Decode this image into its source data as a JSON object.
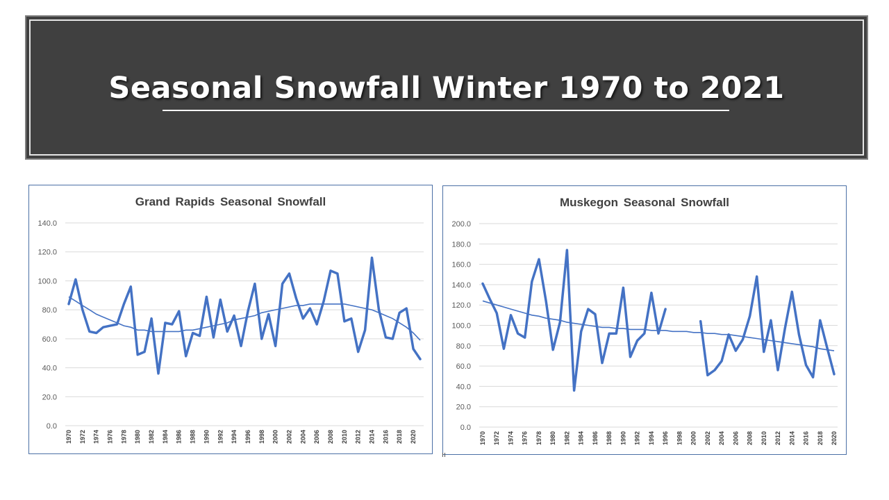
{
  "slide": {
    "title": "Seasonal Snowfall Winter 1970 to 2021"
  },
  "colors": {
    "banner": "#404040",
    "series": "#4472c4",
    "grid": "#d9d9d9",
    "text": "#404040"
  },
  "chart_data": [
    {
      "type": "line",
      "title": "Grand Rapids Seasonal Snowfall",
      "xlabel": "",
      "ylabel": "",
      "ylim": [
        0,
        140
      ],
      "yticks": [
        "0.0",
        "20.0",
        "40.0",
        "60.0",
        "80.0",
        "100.0",
        "120.0",
        "140.0"
      ],
      "x": [
        1970,
        1971,
        1972,
        1973,
        1974,
        1975,
        1976,
        1977,
        1978,
        1979,
        1980,
        1981,
        1982,
        1983,
        1984,
        1985,
        1986,
        1987,
        1988,
        1989,
        1990,
        1991,
        1992,
        1993,
        1994,
        1995,
        1996,
        1997,
        1998,
        1999,
        2000,
        2001,
        2002,
        2003,
        2004,
        2005,
        2006,
        2007,
        2008,
        2009,
        2010,
        2011,
        2012,
        2013,
        2014,
        2015,
        2016,
        2017,
        2018,
        2019,
        2020,
        2021
      ],
      "xtick_labels": [
        "1970",
        "1972",
        "1974",
        "1976",
        "1978",
        "1980",
        "1982",
        "1984",
        "1986",
        "1988",
        "1990",
        "1992",
        "1994",
        "1996",
        "1998",
        "2000",
        "2002",
        "2004",
        "2006",
        "2008",
        "2010",
        "2012",
        "2014",
        "2016",
        "2018",
        "2020"
      ],
      "grid": true,
      "legend": "none",
      "series": [
        {
          "values": [
            84,
            101,
            80,
            65,
            64,
            68,
            69,
            70,
            84,
            96,
            49,
            51,
            74,
            36,
            71,
            70,
            79,
            48,
            64,
            62,
            89,
            61,
            87,
            65,
            76,
            55,
            79,
            98,
            60,
            77,
            55,
            98,
            105,
            88,
            74,
            81,
            70,
            86,
            107,
            105,
            72,
            74,
            51,
            66,
            116,
            80,
            61,
            60,
            78,
            81,
            53,
            46
          ]
        }
      ],
      "trendline": {
        "type": "polynomial",
        "values": [
          89,
          86,
          83,
          80,
          77,
          75,
          73,
          71,
          69,
          68,
          66,
          66,
          65,
          65,
          65,
          65,
          65,
          66,
          66,
          67,
          68,
          69,
          70,
          71,
          73,
          74,
          75,
          76,
          78,
          79,
          80,
          81,
          82,
          83,
          83,
          84,
          84,
          84,
          84,
          84,
          84,
          83,
          82,
          81,
          80,
          78,
          76,
          74,
          71,
          68,
          64,
          59
        ]
      }
    },
    {
      "type": "line",
      "title": "Muskegon Seasonal Snowfall",
      "xlabel": "",
      "ylabel": "",
      "ylim": [
        0,
        200
      ],
      "yticks": [
        "0.0",
        "20.0",
        "40.0",
        "60.0",
        "80.0",
        "100.0",
        "120.0",
        "140.0",
        "160.0",
        "180.0",
        "200.0"
      ],
      "x": [
        1970,
        1971,
        1972,
        1973,
        1974,
        1975,
        1976,
        1977,
        1978,
        1979,
        1980,
        1981,
        1982,
        1983,
        1984,
        1985,
        1986,
        1987,
        1988,
        1989,
        1990,
        1991,
        1992,
        1993,
        1994,
        1995,
        1996,
        1997,
        1998,
        1999,
        2000,
        2001,
        2002,
        2003,
        2004,
        2005,
        2006,
        2007,
        2008,
        2009,
        2010,
        2011,
        2012,
        2013,
        2014,
        2015,
        2016,
        2017,
        2018,
        2019,
        2020
      ],
      "xtick_labels": [
        "1970",
        "1972",
        "1974",
        "1976",
        "1978",
        "1980",
        "1982",
        "1984",
        "1986",
        "1988",
        "1990",
        "1992",
        "1994",
        "1996",
        "1998",
        "2000",
        "2002",
        "2004",
        "2006",
        "2008",
        "2010",
        "2012",
        "2014",
        "2016",
        "2018",
        "2020"
      ],
      "grid": true,
      "legend": "none",
      "series": [
        {
          "values": [
            141,
            126,
            112,
            77,
            110,
            92,
            88,
            143,
            165,
            124,
            76,
            103,
            174,
            36,
            94,
            116,
            111,
            63,
            92,
            92,
            137,
            69,
            85,
            92,
            132,
            92,
            116,
            null,
            null,
            null,
            null,
            104,
            51,
            56,
            65,
            91,
            75,
            86,
            109,
            148,
            74,
            105,
            56,
            97,
            133,
            91,
            61,
            49,
            105,
            78,
            52
          ]
        }
      ],
      "trendline": {
        "type": "logarithmic",
        "values": [
          124,
          122,
          120,
          118,
          116,
          114,
          112,
          110,
          109,
          107,
          106,
          105,
          103,
          102,
          101,
          100,
          99,
          98,
          98,
          97,
          97,
          96,
          96,
          96,
          95,
          95,
          95,
          94,
          94,
          94,
          93,
          93,
          92,
          92,
          91,
          91,
          90,
          89,
          88,
          87,
          86,
          85,
          84,
          83,
          82,
          81,
          80,
          79,
          77,
          76,
          75
        ]
      }
    }
  ]
}
